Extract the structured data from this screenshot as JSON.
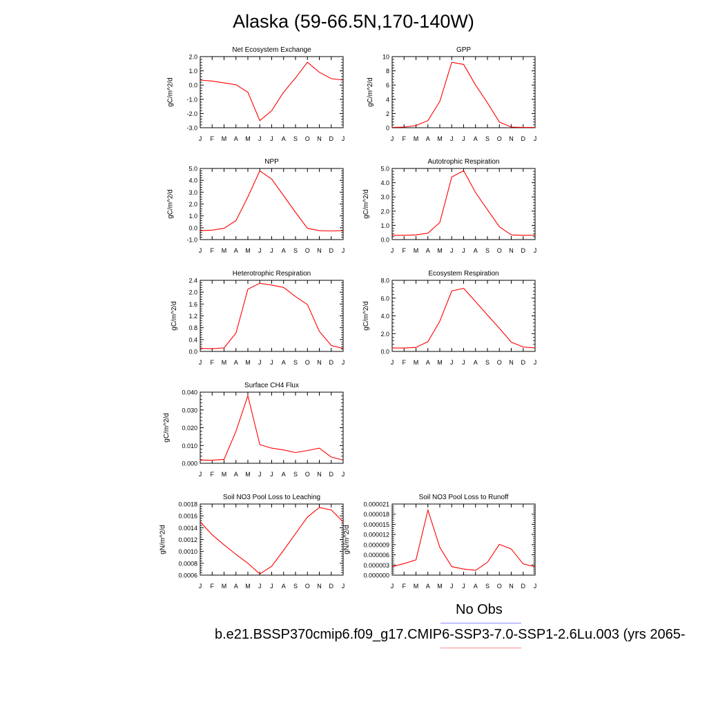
{
  "title": "Alaska (59-66.5N,170-140W)",
  "colors": {
    "series": "#ff0000",
    "obs_line": "#8a8aff",
    "case_line": "#ff8a8a",
    "axis": "#000000"
  },
  "legend": {
    "obs_label": "No Obs",
    "case_label": "b.e21.BSSP370cmip6.f09_g17.CMIP6-SSP3-7.0-SSP1-2.6Lu.003 (yrs 2065-"
  },
  "chart_data": [
    {
      "type": "line",
      "title": "Net Ecosystem Exchange",
      "ylabel": "gC/m^2/d",
      "categories": [
        "J",
        "F",
        "M",
        "A",
        "M",
        "J",
        "J",
        "A",
        "S",
        "O",
        "N",
        "D",
        "J"
      ],
      "ylim": [
        -3.0,
        2.0
      ],
      "yticks": [
        "-3.0",
        "-2.0",
        "-1.0",
        "0.0",
        "1.0",
        "2.0"
      ],
      "values": [
        0.35,
        0.28,
        0.15,
        0.02,
        -0.5,
        -2.5,
        -1.8,
        -0.5,
        0.5,
        1.6,
        0.9,
        0.45,
        0.35
      ]
    },
    {
      "type": "line",
      "title": "GPP",
      "ylabel": "gC/m^2/d",
      "categories": [
        "J",
        "F",
        "M",
        "A",
        "M",
        "J",
        "J",
        "A",
        "S",
        "O",
        "N",
        "D",
        "J"
      ],
      "ylim": [
        0,
        10
      ],
      "yticks": [
        "0",
        "2",
        "4",
        "6",
        "8",
        "10"
      ],
      "values": [
        0.05,
        0.1,
        0.3,
        1.0,
        3.7,
        9.2,
        8.9,
        6.0,
        3.5,
        0.8,
        0.1,
        0.05,
        0.05
      ]
    },
    {
      "type": "line",
      "title": "NPP",
      "ylabel": "gC/m^2/d",
      "categories": [
        "J",
        "F",
        "M",
        "A",
        "M",
        "J",
        "J",
        "A",
        "S",
        "O",
        "N",
        "D",
        "J"
      ],
      "ylim": [
        -1.0,
        5.0
      ],
      "yticks": [
        "-1.0",
        "0.0",
        "1.0",
        "2.0",
        "3.0",
        "4.0",
        "5.0"
      ],
      "values": [
        -0.25,
        -0.2,
        -0.05,
        0.6,
        2.6,
        4.8,
        4.1,
        2.7,
        1.3,
        -0.05,
        -0.25,
        -0.27,
        -0.25
      ]
    },
    {
      "type": "line",
      "title": "Autotrophic Respiration",
      "ylabel": "gC/m^2/d",
      "categories": [
        "J",
        "F",
        "M",
        "A",
        "M",
        "J",
        "J",
        "A",
        "S",
        "O",
        "N",
        "D",
        "J"
      ],
      "ylim": [
        0.0,
        5.0
      ],
      "yticks": [
        "0.0",
        "1.0",
        "2.0",
        "3.0",
        "4.0",
        "5.0"
      ],
      "values": [
        0.3,
        0.3,
        0.33,
        0.45,
        1.2,
        4.4,
        4.85,
        3.3,
        2.1,
        0.9,
        0.33,
        0.3,
        0.3
      ]
    },
    {
      "type": "line",
      "title": "Heterotrophic Respiration",
      "ylabel": "gC/m^2/d",
      "categories": [
        "J",
        "F",
        "M",
        "A",
        "M",
        "J",
        "J",
        "A",
        "S",
        "O",
        "N",
        "D",
        "J"
      ],
      "ylim": [
        0.0,
        2.4
      ],
      "yticks": [
        "0.0",
        "0.4",
        "0.8",
        "1.2",
        "1.6",
        "2.0",
        "2.4"
      ],
      "values": [
        0.1,
        0.09,
        0.12,
        0.62,
        2.1,
        2.3,
        2.24,
        2.16,
        1.85,
        1.58,
        0.68,
        0.2,
        0.1
      ]
    },
    {
      "type": "line",
      "title": "Ecosystem Respiration",
      "ylabel": "gC/m^2/d",
      "categories": [
        "J",
        "F",
        "M",
        "A",
        "M",
        "J",
        "J",
        "A",
        "S",
        "O",
        "N",
        "D",
        "J"
      ],
      "ylim": [
        0.0,
        8.0
      ],
      "yticks": [
        "0.0",
        "2.0",
        "4.0",
        "6.0",
        "8.0"
      ],
      "values": [
        0.4,
        0.38,
        0.45,
        1.1,
        3.4,
        6.8,
        7.1,
        5.6,
        4.1,
        2.6,
        1.05,
        0.5,
        0.4
      ]
    },
    {
      "type": "line",
      "title": "Surface CH4 Flux",
      "ylabel": "gC/m^2/d",
      "categories": [
        "J",
        "F",
        "M",
        "A",
        "M",
        "J",
        "J",
        "A",
        "S",
        "O",
        "N",
        "D",
        "J"
      ],
      "ylim": [
        0.0,
        0.04
      ],
      "yticks": [
        "0.000",
        "0.010",
        "0.020",
        "0.030",
        "0.040"
      ],
      "values": [
        0.0018,
        0.0017,
        0.0022,
        0.018,
        0.038,
        0.0105,
        0.0085,
        0.0075,
        0.006,
        0.0072,
        0.0085,
        0.0035,
        0.0018
      ]
    },
    {
      "type": "line",
      "title": "Soil NO3 Pool Loss to Leaching",
      "ylabel": "gN/m^2/d",
      "categories": [
        "J",
        "F",
        "M",
        "A",
        "M",
        "J",
        "J",
        "A",
        "S",
        "O",
        "N",
        "D",
        "J"
      ],
      "ylim": [
        0.0006,
        0.0018
      ],
      "yticks": [
        "0.0006",
        "0.0008",
        "0.0010",
        "0.0012",
        "0.0014",
        "0.0016",
        "0.0018"
      ],
      "values": [
        0.0015,
        0.00128,
        0.00111,
        0.00095,
        0.0008,
        0.00062,
        0.00075,
        0.00102,
        0.0013,
        0.00158,
        0.00174,
        0.0017,
        0.0015
      ]
    },
    {
      "type": "line",
      "title": "Soil NO3 Pool Loss to Runoff",
      "ylabel": "gN/m^2/d",
      "categories": [
        "J",
        "F",
        "M",
        "A",
        "M",
        "J",
        "J",
        "A",
        "S",
        "O",
        "N",
        "D",
        "J"
      ],
      "ylim": [
        0.0,
        2.1e-05
      ],
      "yticks": [
        "0.000000",
        "0.000003",
        "0.000006",
        "0.000009",
        "0.000012",
        "0.000015",
        "0.000018",
        "0.000021"
      ],
      "values": [
        2.5e-06,
        3.4e-06,
        4.5e-06,
        1.92e-05,
        8.2e-06,
        2.5e-06,
        1.8e-06,
        1.4e-06,
        3.8e-06,
        9.1e-06,
        7.7e-06,
        3.3e-06,
        2.5e-06
      ]
    }
  ]
}
